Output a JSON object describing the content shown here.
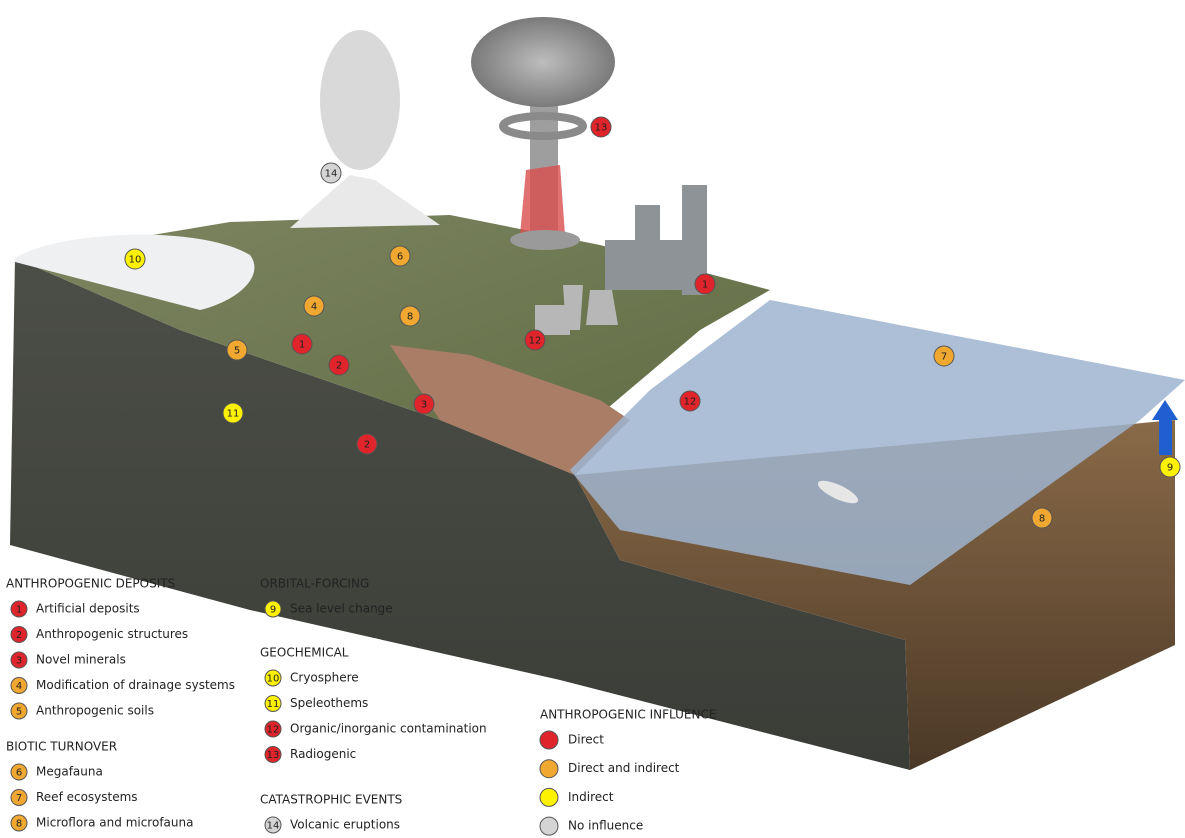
{
  "markers": [
    {
      "label": "14",
      "color": "#d4d4d4"
    },
    {
      "label": "13",
      "color": "#e0242b"
    },
    {
      "label": "10",
      "color": "#fff200"
    },
    {
      "label": "6",
      "color": "#f0a830"
    },
    {
      "label": "1",
      "color": "#e0242b"
    },
    {
      "label": "4",
      "color": "#f0a830"
    },
    {
      "label": "8",
      "color": "#f0a830"
    },
    {
      "label": "1",
      "color": "#e0242b"
    },
    {
      "label": "5",
      "color": "#f0a830"
    },
    {
      "label": "2",
      "color": "#e0242b"
    },
    {
      "label": "12",
      "color": "#e0242b"
    },
    {
      "label": "7",
      "color": "#f0a830"
    },
    {
      "label": "3",
      "color": "#e0242b"
    },
    {
      "label": "12",
      "color": "#e0242b"
    },
    {
      "label": "11",
      "color": "#fff200"
    },
    {
      "label": "2",
      "color": "#e0242b"
    },
    {
      "label": "9",
      "color": "#fff200"
    },
    {
      "label": "8",
      "color": "#f0a830"
    }
  ],
  "legend": [
    {
      "title": "ANTHROPOGENIC DEPOSITS",
      "items": [
        {
          "number": "1",
          "label": "Artificial deposits",
          "color": "#e0242b"
        },
        {
          "number": "2",
          "label": "Anthropogenic structures",
          "color": "#e0242b"
        },
        {
          "number": "3",
          "label": "Novel minerals",
          "color": "#e0242b"
        },
        {
          "number": "4",
          "label": "Modification of drainage systems",
          "color": "#f0a830"
        },
        {
          "number": "5",
          "label": "Anthropogenic soils",
          "color": "#f0a830"
        }
      ]
    },
    {
      "title": "BIOTIC TURNOVER",
      "items": [
        {
          "number": "6",
          "label": "Megafauna",
          "color": "#f0a830"
        },
        {
          "number": "7",
          "label": "Reef ecosystems",
          "color": "#f0a830"
        },
        {
          "number": "8",
          "label": "Microflora and microfauna",
          "color": "#f0a830"
        }
      ]
    },
    {
      "title": "ORBITAL-FORCING",
      "items": [
        {
          "number": "9",
          "label": "Sea level change",
          "color": "#fff200"
        }
      ]
    },
    {
      "title": "GEOCHEMICAL",
      "items": [
        {
          "number": "10",
          "label": "Cryosphere",
          "color": "#fff200"
        },
        {
          "number": "11",
          "label": "Speleothems",
          "color": "#fff200"
        },
        {
          "number": "12",
          "label": "Organic/inorganic contamination",
          "color": "#e0242b"
        },
        {
          "number": "13",
          "label": "Radiogenic",
          "color": "#e0242b"
        }
      ]
    },
    {
      "title": "CATASTROPHIC EVENTS",
      "items": [
        {
          "number": "14",
          "label": "Volcanic eruptions",
          "color": "#d4d4d4"
        }
      ]
    }
  ],
  "influence": {
    "title": "ANTHROPOGENIC INFLUENCE",
    "items": [
      {
        "label": "Direct",
        "color": "#e0242b"
      },
      {
        "label": "Direct and indirect",
        "color": "#f0a830"
      },
      {
        "label": "Indirect",
        "color": "#fff200"
      },
      {
        "label": "No influence",
        "color": "#d4d4d4"
      }
    ]
  }
}
